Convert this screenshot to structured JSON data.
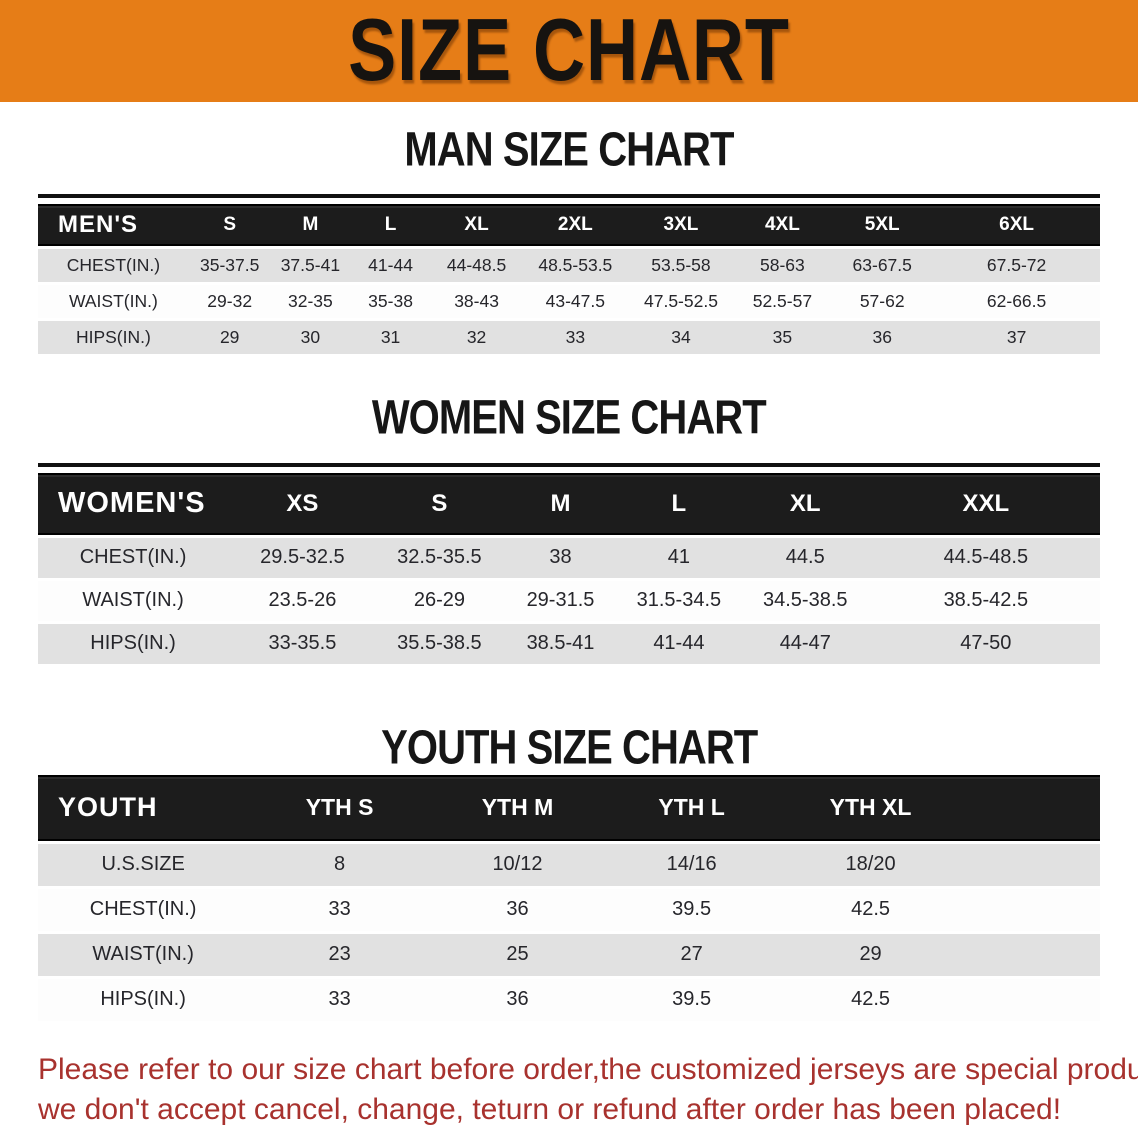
{
  "banner": {
    "title": "SIZE CHART",
    "bg_color": "#e67d17"
  },
  "sections": [
    {
      "heading": "MAN SIZE CHART",
      "table": {
        "header_label": "MEN'S",
        "columns": [
          "S",
          "M",
          "L",
          "XL",
          "2XL",
          "3XL",
          "4XL",
          "5XL",
          "6XL"
        ],
        "rows": [
          {
            "label": "CHEST(IN.)",
            "values": [
              "35-37.5",
              "37.5-41",
              "41-44",
              "44-48.5",
              "48.5-53.5",
              "53.5-58",
              "58-63",
              "63-67.5",
              "67.5-72"
            ]
          },
          {
            "label": "WAIST(IN.)",
            "values": [
              "29-32",
              "32-35",
              "35-38",
              "38-43",
              "43-47.5",
              "47.5-52.5",
              "52.5-57",
              "57-62",
              "62-66.5"
            ]
          },
          {
            "label": "HIPS(IN.)",
            "values": [
              "29",
              "30",
              "31",
              "32",
              "33",
              "34",
              "35",
              "36",
              "37"
            ]
          }
        ]
      }
    },
    {
      "heading": "WOMEN SIZE CHART",
      "table": {
        "header_label": "WOMEN'S",
        "columns": [
          "XS",
          "S",
          "M",
          "L",
          "XL",
          "XXL"
        ],
        "rows": [
          {
            "label": "CHEST(IN.)",
            "values": [
              "29.5-32.5",
              "32.5-35.5",
              "38",
              "41",
              "44.5",
              "44.5-48.5"
            ]
          },
          {
            "label": "WAIST(IN.)",
            "values": [
              "23.5-26",
              "26-29",
              "29-31.5",
              "31.5-34.5",
              "34.5-38.5",
              "38.5-42.5"
            ]
          },
          {
            "label": "HIPS(IN.)",
            "values": [
              "33-35.5",
              "35.5-38.5",
              "38.5-41",
              "41-44",
              "44-47",
              "47-50"
            ]
          }
        ]
      }
    },
    {
      "heading": "YOUTH SIZE CHART",
      "table": {
        "header_label": "YOUTH",
        "columns": [
          "YTH S",
          "YTH M",
          "YTH L",
          "YTH XL"
        ],
        "rows": [
          {
            "label": "U.S.SIZE",
            "values": [
              "8",
              "10/12",
              "14/16",
              "18/20"
            ]
          },
          {
            "label": "CHEST(IN.)",
            "values": [
              "33",
              "36",
              "39.5",
              "42.5"
            ]
          },
          {
            "label": "WAIST(IN.)",
            "values": [
              "23",
              "25",
              "27",
              "29"
            ]
          },
          {
            "label": "HIPS(IN.)",
            "values": [
              "33",
              "36",
              "39.5",
              "42.5"
            ]
          }
        ]
      }
    }
  ],
  "footer": {
    "line1": "Please refer to our size chart before order,the customized jerseys are special products,",
    "line2": "we don't accept cancel, change, teturn or refund after order has been placed!",
    "text_color": "#a8322e"
  }
}
